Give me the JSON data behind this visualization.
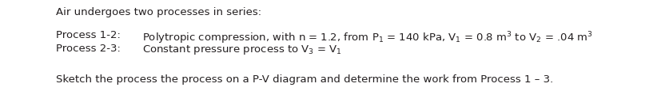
{
  "title_line": "Air undergoes two processes in series:",
  "line1_label": "Process 1-2:",
  "line1_content": "Polytropic compression, with n = 1.2, from P$_1$ = 140 kPa, V$_1$ = 0.8 m$^3$ to V$_2$ = .04 m$^3$",
  "line2_label": "Process 2-3:",
  "line2_content": "Constant pressure process to V$_3$ = V$_1$",
  "footer": "Sketch the process the process on a P-V diagram and determine the work from Process 1 – 3.",
  "bg_color": "#ffffff",
  "text_color": "#231f20",
  "font_size": 9.5,
  "label_indent": 0.085,
  "content_indent": 0.215
}
